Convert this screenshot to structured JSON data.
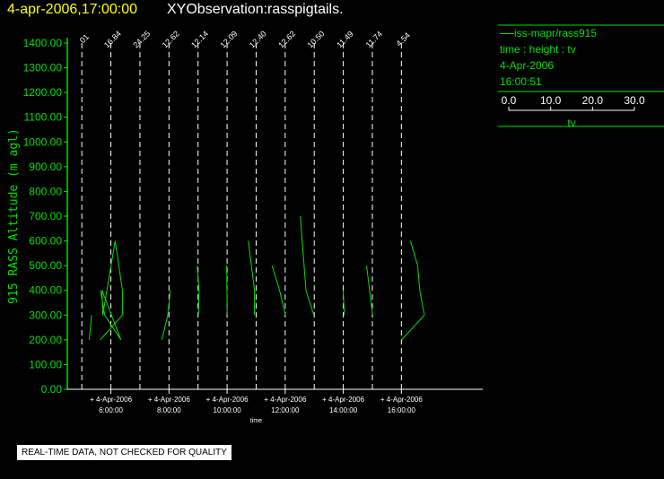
{
  "header": {
    "date_time": "4-apr-2006,17:00:00",
    "title": "XYObservation:rasspigtails."
  },
  "legend": {
    "line_label": "iss-mapr/rass915",
    "variables": "time : height : tv",
    "date": "4-Apr-2006",
    "time": "16:00:51",
    "scale_ticks": [
      "0.0",
      "10.0",
      "20.0",
      "30.0"
    ],
    "scale_values": [
      0,
      10,
      20,
      30
    ],
    "scale_label": "tv"
  },
  "quality_note": "REAL-TIME DATA, NOT CHECKED FOR QUALITY",
  "colors": {
    "background": "#000000",
    "data": "#00e000",
    "header_date": "#ffff00",
    "text": "#ffffff"
  },
  "chart_data": {
    "type": "line",
    "title": "XYObservation:rasspigtails.",
    "xlabel": "time",
    "ylabel": "915 RASS Altitude (m agl)",
    "ylim": [
      0,
      1400
    ],
    "xlim_hours": [
      4.5,
      18.8
    ],
    "yticks": [
      "0.00",
      "100.00",
      "200.00",
      "300.00",
      "400.00",
      "500.00",
      "600.00",
      "700.00",
      "800.00",
      "900.00",
      "1000.00",
      "1100.00",
      "1200.00",
      "1300.00",
      "1400.00"
    ],
    "ytick_values": [
      0,
      100,
      200,
      300,
      400,
      500,
      600,
      700,
      800,
      900,
      1000,
      1100,
      1200,
      1300,
      1400
    ],
    "xticks": [
      {
        "date": "4-Apr-2006",
        "time": "6:00:00",
        "hour": 6
      },
      {
        "date": "4-Apr-2006",
        "time": "8:00:00",
        "hour": 8
      },
      {
        "date": "4-Apr-2006",
        "time": "10:00:00",
        "hour": 10
      },
      {
        "date": "4-Apr-2006",
        "time": "12:00:00",
        "hour": 12
      },
      {
        "date": "4-Apr-2006",
        "time": "14:00:00",
        "hour": 14
      },
      {
        "date": "4-Apr-2006",
        "time": "16:00:00",
        "hour": 16
      }
    ],
    "profiles": [
      {
        "baseline_label": ".01",
        "hour": 5.0,
        "tv": [
          [
            5.0,
            200
          ],
          [
            6.6,
            300
          ]
        ]
      },
      {
        "baseline_label": "16.84",
        "hour": 6.0,
        "tv": [
          [
            -7.0,
            400
          ],
          [
            -4.2,
            300
          ],
          [
            6.8,
            200
          ],
          [
            -6.0,
            400
          ],
          [
            -5.5,
            300
          ],
          [
            2.9,
            600
          ],
          [
            7.8,
            400
          ],
          [
            7.8,
            300
          ],
          [
            -7.2,
            200
          ]
        ]
      },
      {
        "baseline_label": "24.25",
        "hour": 7.0,
        "tv": []
      },
      {
        "baseline_label": "12.62",
        "hour": 8.0,
        "tv": [
          [
            0.9,
            400
          ],
          [
            -0.8,
            300
          ],
          [
            -4.8,
            200
          ]
        ]
      },
      {
        "baseline_label": "12.14",
        "hour": 9.0,
        "tv": [
          [
            -0.6,
            500
          ],
          [
            0.7,
            400
          ],
          [
            0.3,
            300
          ]
        ]
      },
      {
        "baseline_label": "12.09",
        "hour": 10.0,
        "tv": [
          [
            -0.3,
            500
          ],
          [
            0.1,
            300
          ]
        ]
      },
      {
        "baseline_label": "12.40",
        "hour": 11.0,
        "tv": [
          [
            -5.3,
            600
          ],
          [
            -1.1,
            400
          ],
          [
            -1.1,
            300
          ]
        ]
      },
      {
        "baseline_label": "12.62",
        "hour": 12.0,
        "tv": [
          [
            -8.9,
            500
          ],
          [
            -3.8,
            400
          ],
          [
            0.1,
            300
          ]
        ]
      },
      {
        "baseline_label": "10.50",
        "hour": 13.0,
        "tv": [
          [
            -9.4,
            700
          ],
          [
            -5.6,
            400
          ],
          [
            -0.3,
            300
          ]
        ]
      },
      {
        "baseline_label": "11.49",
        "hour": 14.0,
        "tv": [
          [
            -0.1,
            400
          ],
          [
            0.7,
            300
          ]
        ]
      },
      {
        "baseline_label": "11.74",
        "hour": 15.0,
        "tv": [
          [
            -3.9,
            500
          ],
          [
            0.2,
            300
          ]
        ]
      },
      {
        "baseline_label": "4.54",
        "hour": 16.0,
        "tv": [
          [
            6.1,
            600
          ],
          [
            11.0,
            500
          ],
          [
            12.4,
            400
          ],
          [
            15.5,
            300
          ],
          [
            0.1,
            200
          ]
        ]
      }
    ]
  }
}
